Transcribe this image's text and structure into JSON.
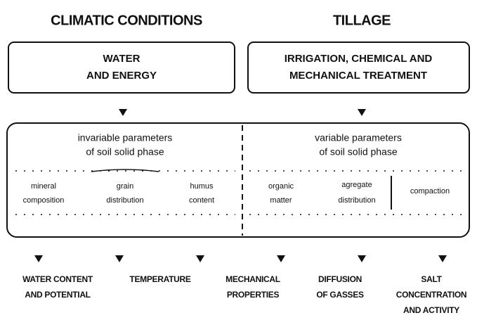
{
  "headers": {
    "left": "CLIMATIC CONDITIONS",
    "right": "TILLAGE"
  },
  "boxes": {
    "left": [
      "WATER",
      "AND ENERGY"
    ],
    "right": [
      "IRRIGATION, CHEMICAL AND",
      "MECHANICAL TREATMENT"
    ]
  },
  "parameters": {
    "left": {
      "title": [
        "invariable parameters",
        "of soil solid phase"
      ],
      "items": [
        [
          "mineral",
          "composition"
        ],
        [
          "grain",
          "distribution"
        ],
        [
          "humus",
          "content"
        ]
      ]
    },
    "right": {
      "title": [
        "variable parameters",
        "of soil solid phase"
      ],
      "items": [
        [
          "organic",
          "matter"
        ],
        [
          "agregate",
          "distribution"
        ],
        [
          "compaction"
        ]
      ]
    }
  },
  "outcomes": [
    [
      "WATER CONTENT",
      "AND POTENTIAL"
    ],
    [
      "TEMPERATURE"
    ],
    [
      "MECHANICAL",
      "PROPERTIES"
    ],
    [
      "DIFFUSION",
      "OF GASSES"
    ],
    [
      "SALT",
      "CONCENTRATION",
      "AND ACTIVITY"
    ]
  ]
}
